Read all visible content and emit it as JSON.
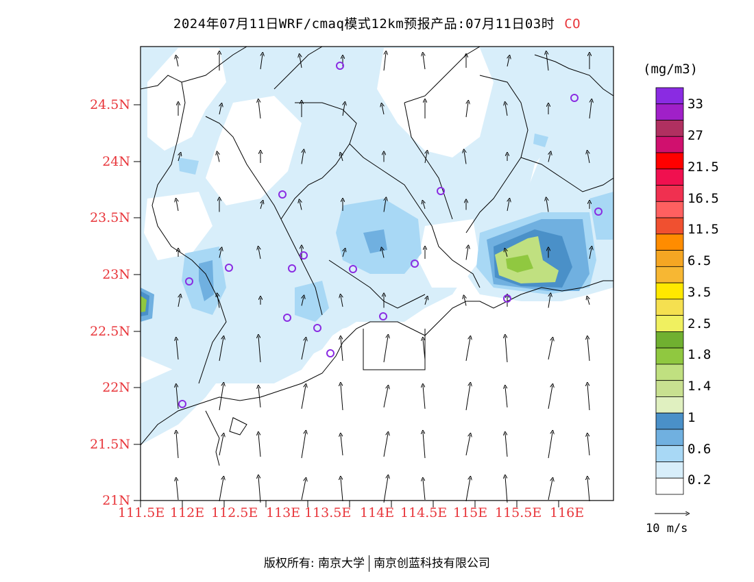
{
  "title": {
    "main": "2024年07月11日WRF/cmaq模式12km预报产品:07月11日03时",
    "species": "CO"
  },
  "axes": {
    "y_ticks": [
      "24.5N",
      "24N",
      "23.5N",
      "23N",
      "22.5N",
      "22N",
      "21.5N",
      "21N"
    ],
    "x_ticks": [
      "111.5E",
      "112E",
      "112.5E",
      "113E",
      "113.5E",
      "114E",
      "114.5E",
      "115E",
      "115.5E",
      "116E"
    ]
  },
  "colorbar": {
    "unit": "(mg/m3)",
    "labels": [
      "33",
      "27",
      "21.5",
      "16.5",
      "11.5",
      "6.5",
      "3.5",
      "2.5",
      "1.8",
      "1.4",
      "1",
      "0.6",
      "0.2"
    ],
    "colors": [
      "#8a2be2",
      "#a020c8",
      "#b03060",
      "#d0106e",
      "#ff0000",
      "#f0104f",
      "#f03050",
      "#ff6060",
      "#f05030",
      "#ff8c00",
      "#f5a623",
      "#f7b733",
      "#ffe800",
      "#f5e050",
      "#f0f060",
      "#70b030",
      "#90c840",
      "#c0e080",
      "#c8e090",
      "#e0f0c0",
      "#4a90c8",
      "#70b0e0",
      "#a8d8f5",
      "#d8eefa",
      "#ffffff"
    ]
  },
  "reference_vector": {
    "label": "10 m/s"
  },
  "map": {
    "station_marker_color": "#8a2be2",
    "shade_colors": {
      "light": "#d8eefa",
      "mid": "#a8d8f5",
      "dark": "#70b0e0",
      "darker": "#4a90c8",
      "green_light": "#c0e080",
      "green": "#90c840"
    }
  },
  "footer": {
    "left": "版权所有: 南京大学",
    "right": "南京创蓝科技有限公司"
  }
}
